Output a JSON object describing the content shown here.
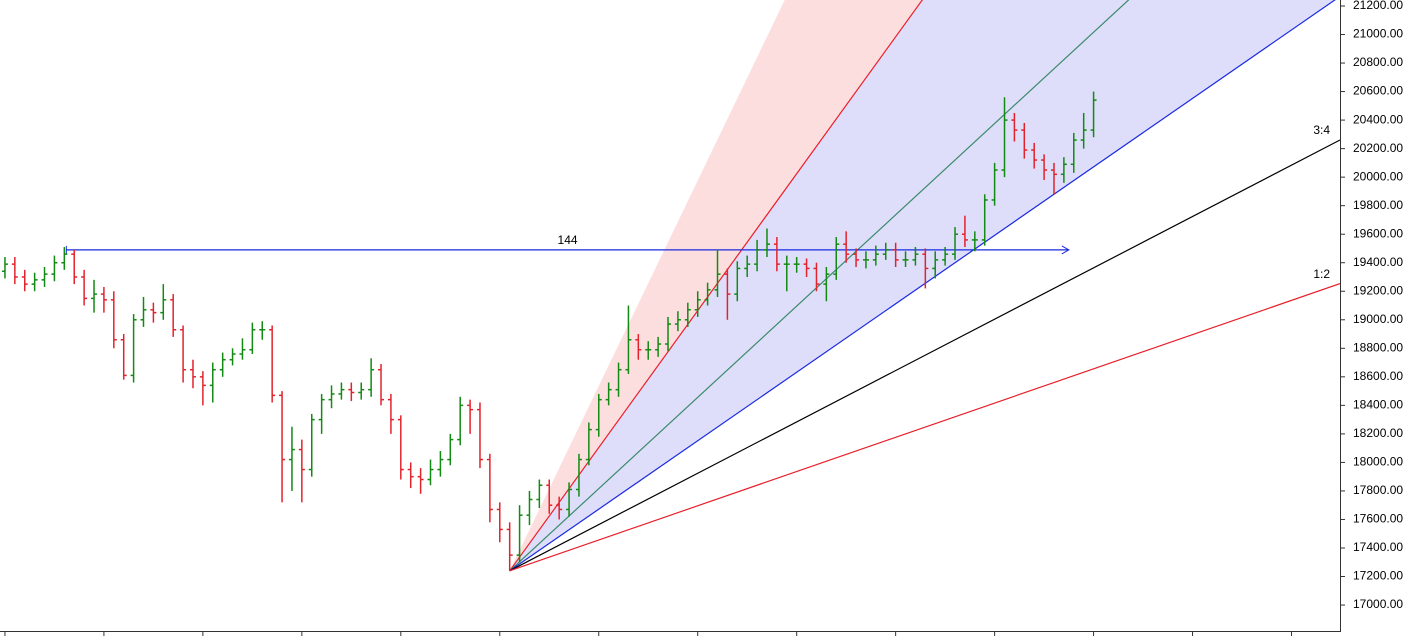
{
  "chart_data": {
    "type": "ohlc",
    "ylim": [
      16839,
      21242
    ],
    "xlim": [
      -0.5,
      134.9
    ],
    "yticks": [
      {
        "value": 17000,
        "label": "17000.00"
      },
      {
        "value": 17200,
        "label": "17200.00"
      },
      {
        "value": 17400,
        "label": "17400.00"
      },
      {
        "value": 17600,
        "label": "17600.00"
      },
      {
        "value": 17800,
        "label": "17800.00"
      },
      {
        "value": 18000,
        "label": "18000.00"
      },
      {
        "value": 18200,
        "label": "18200.00"
      },
      {
        "value": 18400,
        "label": "18400.00"
      },
      {
        "value": 18600,
        "label": "18600.00"
      },
      {
        "value": 18800,
        "label": "18800.00"
      },
      {
        "value": 19000,
        "label": "19000.00"
      },
      {
        "value": 19200,
        "label": "19200.00"
      },
      {
        "value": 19400,
        "label": "19400.00"
      },
      {
        "value": 19600,
        "label": "19600.00"
      },
      {
        "value": 19800,
        "label": "19800.00"
      },
      {
        "value": 20000,
        "label": "20000.00"
      },
      {
        "value": 20200,
        "label": "20200.00"
      },
      {
        "value": 20400,
        "label": "20400.00"
      },
      {
        "value": 20600,
        "label": "20600.00"
      },
      {
        "value": 20800,
        "label": "20800.00"
      },
      {
        "value": 21000,
        "label": "21000.00"
      },
      {
        "value": 21200,
        "label": "21200.00"
      }
    ],
    "up_color": "#138a13",
    "down_color": "#e3232c",
    "open": [
      19340,
      19390,
      19300,
      19250,
      19280,
      19320,
      19400,
      19460,
      19300,
      19150,
      19180,
      19140,
      18860,
      18610,
      19000,
      19070,
      19050,
      19140,
      18930,
      18650,
      18600,
      18540,
      18650,
      18720,
      18760,
      18790,
      18930,
      18930,
      18470,
      18020,
      18090,
      17950,
      18300,
      18440,
      18480,
      18510,
      18490,
      18510,
      18650,
      18440,
      18300,
      17950,
      17900,
      17880,
      17950,
      18020,
      18160,
      18400,
      18370,
      18020,
      17670,
      17530,
      17350,
      17630,
      17740,
      17840,
      17700,
      17670,
      17810,
      18020,
      18230,
      18440,
      18510,
      18650,
      18860,
      18790,
      18790,
      18830,
      18970,
      19000,
      19070,
      19140,
      19210,
      19320,
      19180,
      19360,
      19390,
      19490,
      19530,
      19390,
      19390,
      19390,
      19360,
      19250,
      19320,
      19530,
      19460,
      19420,
      19420,
      19460,
      19490,
      19420,
      19420,
      19460,
      19360,
      19420,
      19460,
      19600,
      19560,
      19560,
      19840,
      20050,
      20400,
      20330,
      20190,
      20120,
      20050,
      20020,
      20090,
      20260,
      20330
    ],
    "high": [
      19440,
      19440,
      19350,
      19330,
      19370,
      19450,
      19510,
      19490,
      19350,
      19280,
      19230,
      19200,
      18900,
      19040,
      19160,
      19120,
      19250,
      19180,
      18960,
      18720,
      18640,
      18700,
      18770,
      18800,
      18870,
      18980,
      18990,
      18960,
      18500,
      18250,
      18160,
      18340,
      18480,
      18540,
      18560,
      18560,
      18560,
      18730,
      18690,
      18480,
      18330,
      18000,
      17960,
      18020,
      18080,
      18200,
      18460,
      18440,
      18420,
      18060,
      17720,
      17580,
      17700,
      17800,
      17880,
      17880,
      17760,
      17860,
      18060,
      18280,
      18480,
      18560,
      18700,
      19100,
      18900,
      18850,
      18880,
      19020,
      19060,
      19120,
      19200,
      19260,
      19490,
      19360,
      19410,
      19450,
      19560,
      19640,
      19580,
      19450,
      19440,
      19430,
      19400,
      19370,
      19580,
      19620,
      19500,
      19480,
      19520,
      19540,
      19540,
      19480,
      19510,
      19500,
      19480,
      19510,
      19650,
      19730,
      19620,
      19880,
      20100,
      20560,
      20450,
      20380,
      20240,
      20160,
      20100,
      20140,
      20310,
      20450,
      20600
    ],
    "low": [
      19290,
      19250,
      19200,
      19200,
      19230,
      19270,
      19350,
      19250,
      19100,
      19050,
      19050,
      18800,
      18580,
      18560,
      18950,
      18980,
      19000,
      18880,
      18560,
      18520,
      18400,
      18420,
      18600,
      18680,
      18720,
      18760,
      18860,
      18420,
      17720,
      17800,
      17720,
      17900,
      18200,
      18380,
      18440,
      18430,
      18440,
      18460,
      18400,
      18200,
      17880,
      17820,
      17780,
      17840,
      17900,
      17980,
      18120,
      18200,
      17960,
      17580,
      17440,
      17240,
      17300,
      17560,
      17680,
      17640,
      17600,
      17620,
      17760,
      17980,
      18180,
      18400,
      18460,
      18620,
      18720,
      18720,
      18740,
      18780,
      18920,
      18950,
      19020,
      19100,
      19160,
      19000,
      19130,
      19300,
      19340,
      19440,
      19340,
      19200,
      19330,
      19300,
      19200,
      19130,
      19280,
      19400,
      19370,
      19360,
      19380,
      19420,
      19370,
      19370,
      19380,
      19220,
      19290,
      19380,
      19420,
      19510,
      19480,
      19520,
      19800,
      20000,
      20250,
      20130,
      20060,
      19980,
      19880,
      19960,
      20030,
      20200,
      20280
    ],
    "close": [
      19390,
      19300,
      19250,
      19280,
      19320,
      19400,
      19460,
      19300,
      19150,
      19180,
      19140,
      18860,
      18610,
      19000,
      19070,
      19050,
      19140,
      18930,
      18650,
      18600,
      18540,
      18650,
      18720,
      18760,
      18790,
      18930,
      18930,
      18470,
      18020,
      18090,
      17950,
      18300,
      18440,
      18480,
      18510,
      18490,
      18510,
      18650,
      18440,
      18300,
      17950,
      17900,
      17880,
      17950,
      18020,
      18160,
      18400,
      18370,
      18020,
      17670,
      17530,
      17350,
      17630,
      17740,
      17840,
      17700,
      17670,
      17810,
      18020,
      18230,
      18440,
      18510,
      18650,
      18860,
      18790,
      18790,
      18830,
      18970,
      19000,
      19070,
      19140,
      19210,
      19320,
      19180,
      19360,
      19390,
      19490,
      19530,
      19390,
      19390,
      19390,
      19360,
      19250,
      19320,
      19530,
      19460,
      19420,
      19420,
      19460,
      19490,
      19420,
      19420,
      19460,
      19360,
      19420,
      19460,
      19600,
      19560,
      19560,
      19840,
      20050,
      20400,
      20330,
      20190,
      20120,
      20050,
      20020,
      20090,
      20260,
      20330,
      20540
    ],
    "fan": {
      "origin": {
        "x": 51,
        "y": 17240
      },
      "fills": [
        {
          "slopes": [
            144,
            96
          ],
          "color": "#fddede"
        },
        {
          "slopes": [
            96,
            48
          ],
          "color": "#dedefa"
        }
      ],
      "lines": [
        {
          "slope": 96,
          "color": "#e8202a"
        },
        {
          "slope": 64,
          "color": "#3a8a6a"
        },
        {
          "slope": 48,
          "color": "#1a2ae0"
        },
        {
          "slope": 36,
          "color": "#000000",
          "label": "3:4"
        },
        {
          "slope": 24,
          "color": "#e8202a",
          "label": "1:2"
        }
      ]
    },
    "hline": {
      "x": [
        6.2,
        107.5
      ],
      "y": 19490,
      "label": "144",
      "color": "#1a2ae0"
    }
  }
}
